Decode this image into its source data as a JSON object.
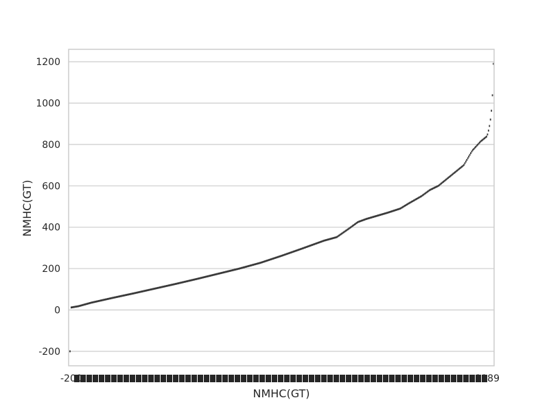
{
  "chart_data": {
    "type": "scatter",
    "title": "",
    "xlabel": "NMHC(GT)",
    "ylabel": "NMHC(GT)",
    "ylim": [
      -270,
      1260
    ],
    "yticks": [
      -200,
      0,
      200,
      400,
      600,
      800,
      1000,
      1200
    ],
    "grid": true,
    "x_tick_first_label": "-200",
    "x_tick_last_label": "1189",
    "x_tick_labels_note": "",
    "points_note": "",
    "series": [
      {
        "name": "",
        "description": "",
        "x_fraction_y_pairs": [
          [
            0.0,
            -200
          ],
          [
            0.003,
            12
          ],
          [
            0.02,
            18
          ],
          [
            0.05,
            35
          ],
          [
            0.1,
            58
          ],
          [
            0.15,
            80
          ],
          [
            0.2,
            103
          ],
          [
            0.25,
            126
          ],
          [
            0.3,
            150
          ],
          [
            0.35,
            175
          ],
          [
            0.4,
            200
          ],
          [
            0.45,
            228
          ],
          [
            0.5,
            262
          ],
          [
            0.55,
            298
          ],
          [
            0.6,
            335
          ],
          [
            0.63,
            352
          ],
          [
            0.66,
            395
          ],
          [
            0.68,
            425
          ],
          [
            0.7,
            440
          ],
          [
            0.75,
            470
          ],
          [
            0.78,
            490
          ],
          [
            0.8,
            515
          ],
          [
            0.83,
            550
          ],
          [
            0.85,
            580
          ],
          [
            0.87,
            600
          ],
          [
            0.9,
            650
          ],
          [
            0.93,
            700
          ],
          [
            0.95,
            770
          ],
          [
            0.97,
            815
          ],
          [
            0.985,
            840
          ],
          [
            0.99,
            880
          ],
          [
            0.993,
            920
          ],
          [
            0.996,
            975
          ],
          [
            0.998,
            1050
          ],
          [
            0.999,
            1085
          ],
          [
            1.0,
            1190
          ]
        ]
      }
    ]
  }
}
